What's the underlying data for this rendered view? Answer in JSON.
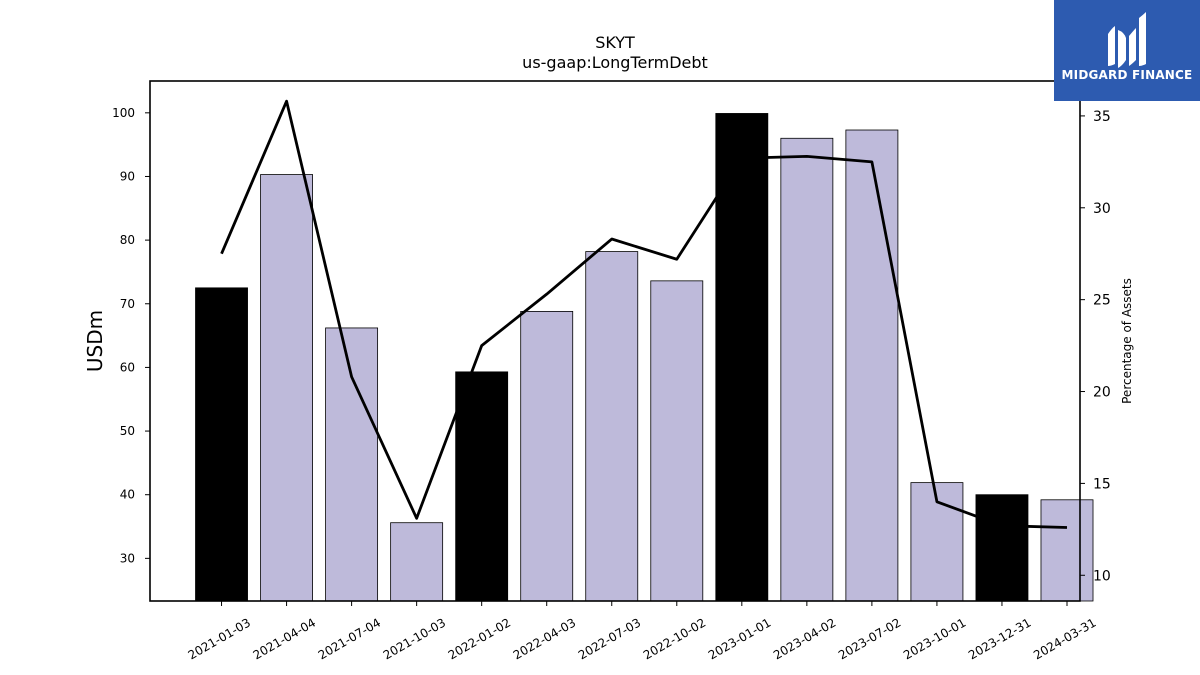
{
  "chart_data": {
    "type": "bar",
    "title": "SKYT",
    "subtitle": "us-gaap:LongTermDebt",
    "ylabel": "USDm",
    "y2label": "Percentage of Assets",
    "categories": [
      "2021-01-03",
      "2021-04-04",
      "2021-07-04",
      "2021-10-03",
      "2022-01-02",
      "2022-04-03",
      "2022-07-03",
      "2022-10-02",
      "2023-01-01",
      "2023-04-02",
      "2023-07-02",
      "2023-10-01",
      "2023-12-31",
      "2024-03-31"
    ],
    "series": [
      {
        "type": "bar",
        "axis": "left",
        "values": [
          72.5,
          90.3,
          66.2,
          35.6,
          59.3,
          68.8,
          78.2,
          73.6,
          99.9,
          96.0,
          97.3,
          41.9,
          40.0,
          39.2
        ],
        "highlight": [
          true,
          false,
          false,
          false,
          true,
          false,
          false,
          false,
          true,
          false,
          false,
          false,
          true,
          false
        ]
      },
      {
        "type": "line",
        "axis": "right",
        "values": [
          27.5,
          35.8,
          20.8,
          13.1,
          22.5,
          25.3,
          28.3,
          27.2,
          32.7,
          32.8,
          32.5,
          14.0,
          12.7,
          12.6
        ]
      }
    ],
    "ylim": [
      23.3,
      105.0
    ],
    "y2lim": [
      8.6,
      36.9
    ],
    "yticks": [
      30,
      40,
      50,
      60,
      70,
      80,
      90,
      100
    ],
    "y2ticks": [
      10,
      15,
      20,
      25,
      30,
      35
    ],
    "colors": {
      "bar": "#bebada",
      "bar_highlight": "#000000",
      "line": "#000000",
      "axes": "#000000"
    },
    "grid": false,
    "legend": "none"
  },
  "logo": {
    "text": "MIDGARD FINANCE",
    "background": "#2d5bb0"
  }
}
